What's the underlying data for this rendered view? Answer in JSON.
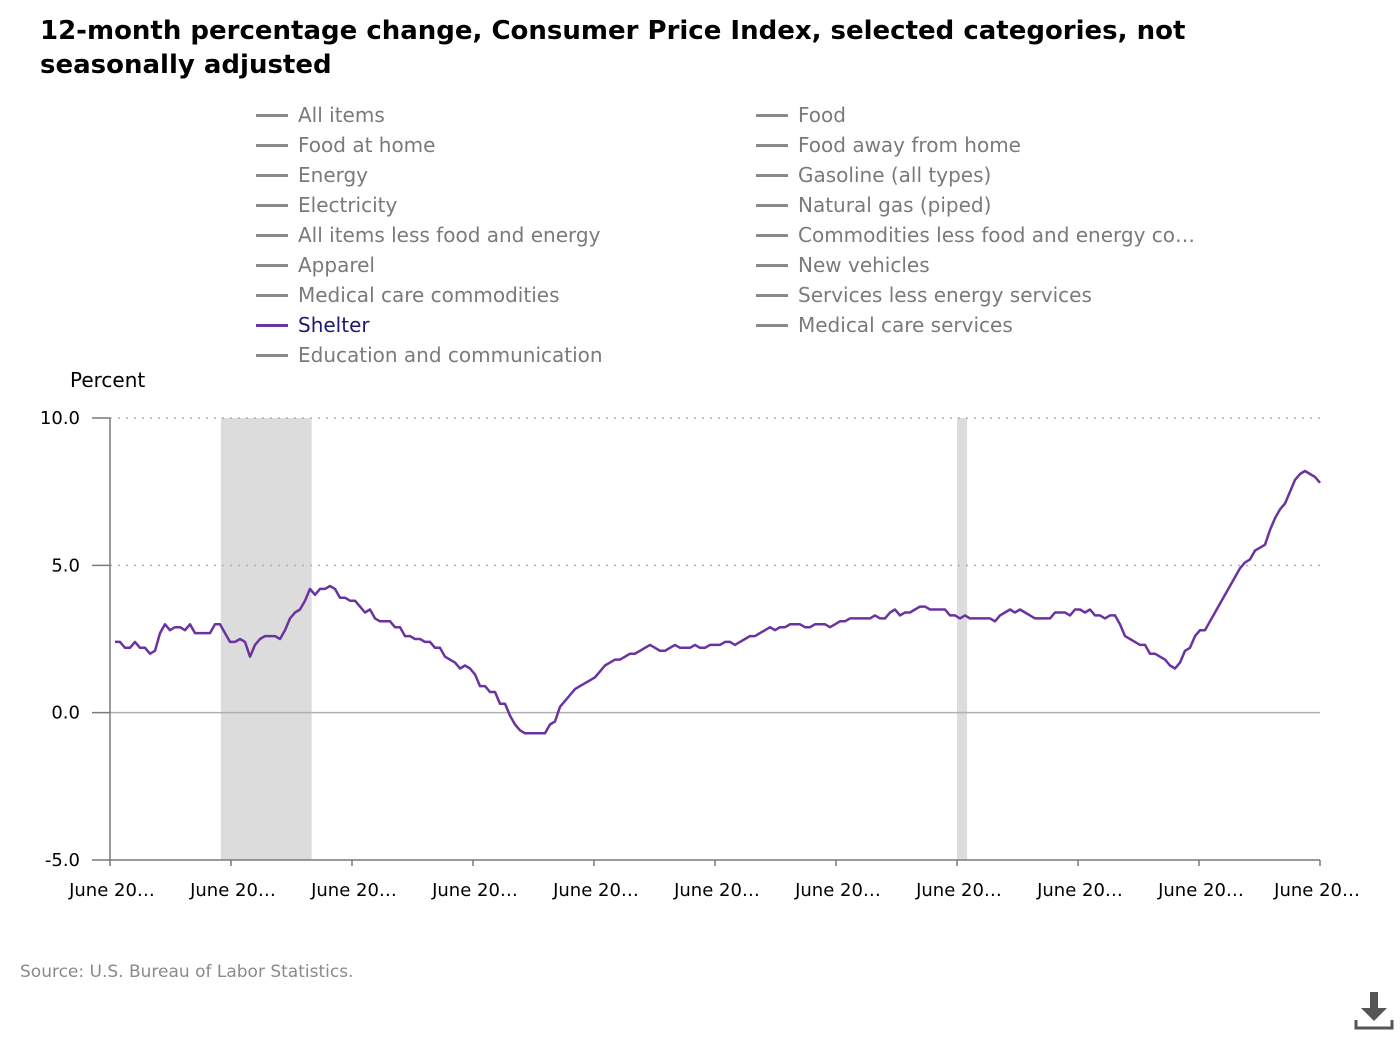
{
  "title": "12-month percentage change, Consumer Price Index, selected categories, not seasonally adjusted",
  "legend": [
    {
      "label": "All items",
      "active": false
    },
    {
      "label": "Food",
      "active": false
    },
    {
      "label": "Food at home",
      "active": false
    },
    {
      "label": "Food away from home",
      "active": false
    },
    {
      "label": "Energy",
      "active": false
    },
    {
      "label": "Gasoline (all types)",
      "active": false
    },
    {
      "label": "Electricity",
      "active": false
    },
    {
      "label": "Natural gas (piped)",
      "active": false
    },
    {
      "label": "All items less food and energy",
      "active": false
    },
    {
      "label": "Commodities less food and energy com…",
      "active": false
    },
    {
      "label": "Apparel",
      "active": false
    },
    {
      "label": "New vehicles",
      "active": false
    },
    {
      "label": "Medical care commodities",
      "active": false
    },
    {
      "label": "Services less energy services",
      "active": false
    },
    {
      "label": "Shelter",
      "active": true
    },
    {
      "label": "Medical care services",
      "active": false
    },
    {
      "label": "Education and communication",
      "active": false
    }
  ],
  "source": "Source: U.S. Bureau of Labor Statistics.",
  "icons": {
    "download": "download-icon"
  },
  "colors": {
    "shelter": "#6a33a0",
    "recession": "#dcdcdc",
    "legend_inactive": "#8a8a8a"
  },
  "chart_data": {
    "type": "line",
    "ylabel": "Percent",
    "ylim": [
      -5,
      10
    ],
    "yticks": [
      "10.0",
      "5.0",
      "0.0",
      "-5.0"
    ],
    "xticks": [
      "June 20…",
      "June 20…",
      "June 20…",
      "June 20…",
      "June 20…",
      "June 20…",
      "June 20…",
      "June 20…",
      "June 20…",
      "June 20…",
      "June 20…"
    ],
    "x_range_months": [
      0,
      240
    ],
    "recession_bands_months": [
      [
        22,
        40
      ],
      [
        168,
        170
      ]
    ],
    "grid": "horizontal dotted at 10.0 and 5.0",
    "series": [
      {
        "name": "Shelter",
        "values": [
          2.4,
          2.4,
          2.2,
          2.2,
          2.4,
          2.2,
          2.2,
          2.0,
          2.1,
          2.7,
          3.0,
          2.8,
          2.9,
          2.9,
          2.8,
          3.0,
          2.7,
          2.7,
          2.7,
          2.7,
          3.0,
          3.0,
          2.7,
          2.4,
          2.4,
          2.5,
          2.4,
          1.9,
          2.3,
          2.5,
          2.6,
          2.6,
          2.6,
          2.5,
          2.8,
          3.2,
          3.4,
          3.5,
          3.8,
          4.2,
          4.0,
          4.2,
          4.2,
          4.3,
          4.2,
          3.9,
          3.9,
          3.8,
          3.8,
          3.6,
          3.4,
          3.5,
          3.2,
          3.1,
          3.1,
          3.1,
          2.9,
          2.9,
          2.6,
          2.6,
          2.5,
          2.5,
          2.4,
          2.4,
          2.2,
          2.2,
          1.9,
          1.8,
          1.7,
          1.5,
          1.6,
          1.5,
          1.3,
          0.9,
          0.9,
          0.7,
          0.7,
          0.3,
          0.3,
          -0.1,
          -0.4,
          -0.6,
          -0.7,
          -0.7,
          -0.7,
          -0.7,
          -0.7,
          -0.4,
          -0.3,
          0.2,
          0.4,
          0.6,
          0.8,
          0.9,
          1.0,
          1.1,
          1.2,
          1.4,
          1.6,
          1.7,
          1.8,
          1.8,
          1.9,
          2.0,
          2.0,
          2.1,
          2.2,
          2.3,
          2.2,
          2.1,
          2.1,
          2.2,
          2.3,
          2.2,
          2.2,
          2.2,
          2.3,
          2.2,
          2.2,
          2.3,
          2.3,
          2.3,
          2.4,
          2.4,
          2.3,
          2.4,
          2.5,
          2.6,
          2.6,
          2.7,
          2.8,
          2.9,
          2.8,
          2.9,
          2.9,
          3.0,
          3.0,
          3.0,
          2.9,
          2.9,
          3.0,
          3.0,
          3.0,
          2.9,
          3.0,
          3.1,
          3.1,
          3.2,
          3.2,
          3.2,
          3.2,
          3.2,
          3.3,
          3.2,
          3.2,
          3.4,
          3.5,
          3.3,
          3.4,
          3.4,
          3.5,
          3.6,
          3.6,
          3.5,
          3.5,
          3.5,
          3.5,
          3.3,
          3.3,
          3.2,
          3.3,
          3.2,
          3.2,
          3.2,
          3.2,
          3.2,
          3.1,
          3.3,
          3.4,
          3.5,
          3.4,
          3.5,
          3.4,
          3.3,
          3.2,
          3.2,
          3.2,
          3.2,
          3.4,
          3.4,
          3.4,
          3.3,
          3.5,
          3.5,
          3.4,
          3.5,
          3.3,
          3.3,
          3.2,
          3.3,
          3.3,
          3.0,
          2.6,
          2.5,
          2.4,
          2.3,
          2.3,
          2.0,
          2.0,
          1.9,
          1.8,
          1.6,
          1.5,
          1.7,
          2.1,
          2.2,
          2.6,
          2.8,
          2.8,
          3.1,
          3.4,
          3.7,
          4.0,
          4.3,
          4.6,
          4.9,
          5.1,
          5.2,
          5.5,
          5.6,
          5.7,
          6.2,
          6.6,
          6.9,
          7.1,
          7.5,
          7.9,
          8.1,
          8.2,
          8.1,
          8.0,
          7.8
        ]
      }
    ]
  }
}
